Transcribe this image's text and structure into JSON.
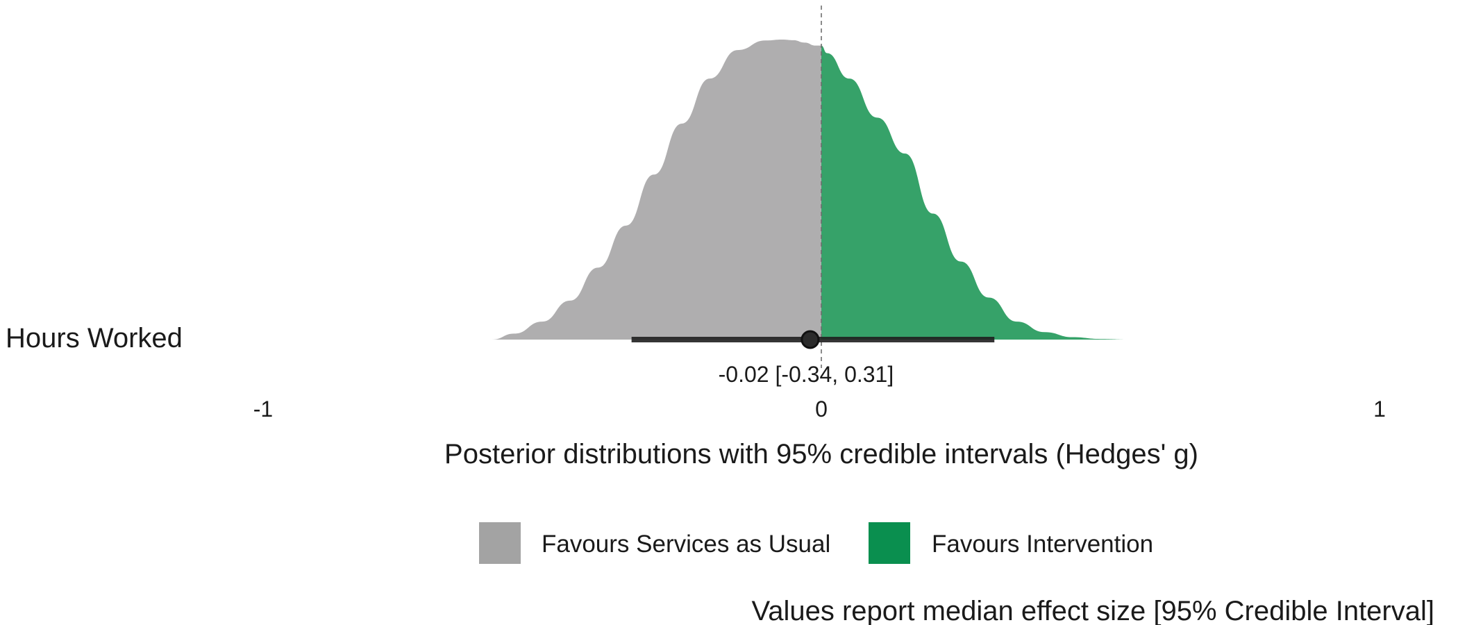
{
  "chart_data": {
    "type": "density",
    "category": "Hours Worked",
    "median": -0.02,
    "ci_low": -0.34,
    "ci_high": 0.31,
    "interval_label": "-0.02 [-0.34, 0.31]",
    "xlim": [
      -1,
      1
    ],
    "x_ticks": [
      "-1",
      "0",
      "1"
    ],
    "x_tick_values": [
      -1,
      0,
      1
    ],
    "xlabel": "Posterior distributions with 95% credible intervals (Hedges' g)",
    "density": {
      "x": [
        -0.59,
        -0.55,
        -0.5,
        -0.45,
        -0.4,
        -0.35,
        -0.3,
        -0.25,
        -0.2,
        -0.15,
        -0.1,
        -0.07,
        -0.05,
        -0.03,
        -0.01,
        0.0,
        0.01,
        0.05,
        0.1,
        0.15,
        0.2,
        0.25,
        0.3,
        0.35,
        0.4,
        0.45,
        0.5,
        0.55,
        0.59
      ],
      "y": [
        0.0,
        0.02,
        0.06,
        0.13,
        0.24,
        0.38,
        0.55,
        0.72,
        0.87,
        0.965,
        0.997,
        1.0,
        0.998,
        0.99,
        0.98,
        0.98,
        0.955,
        0.87,
        0.74,
        0.62,
        0.42,
        0.26,
        0.14,
        0.06,
        0.025,
        0.008,
        0.002,
        0.0,
        0.0
      ]
    },
    "legend": [
      {
        "label": "Favours Services as Usual",
        "color": "#a3a3a3"
      },
      {
        "label": "Favours Intervention",
        "color": "#0a8f4f"
      }
    ],
    "legend_position": "bottom",
    "fills": {
      "negative": "#afaeaf",
      "positive": "#36a269"
    },
    "caption": "Values report median effect size [95% Credible Interval]",
    "grid": false
  }
}
